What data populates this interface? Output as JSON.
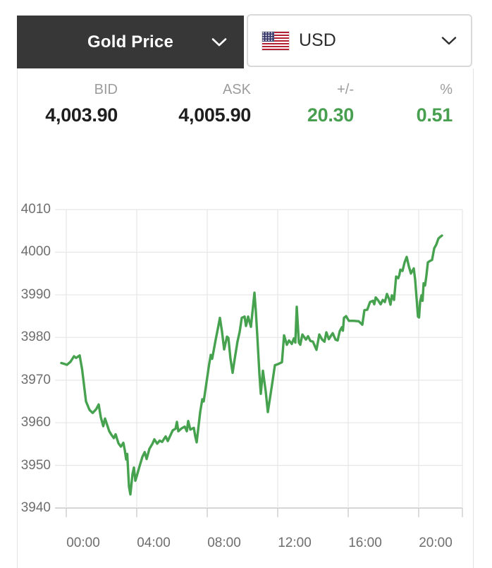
{
  "selector": {
    "label": "Gold Price",
    "chevron_icon": "chevron-down"
  },
  "currency": {
    "label": "USD",
    "flag_icon": "us-flag",
    "chevron_icon": "chevron-down"
  },
  "quote": {
    "headers": [
      "BID",
      "ASK",
      "+/-",
      "%"
    ],
    "bid": "4,003.90",
    "ask": "4,005.90",
    "change": "20.30",
    "change_pct": "0.51"
  },
  "colors": {
    "accent_green": "#479f4f",
    "line_green": "#46a24f",
    "button_dark": "#373737",
    "grid": "#e8e8e8",
    "axis": "#c9c9c9",
    "label_gray": "#6e6e6e",
    "header_gray": "#9c9c9c"
  },
  "chart_data": {
    "type": "line",
    "title": "",
    "xlabel": "",
    "ylabel": "",
    "grid": true,
    "legend": "none",
    "x_unit": "hours (24h clock)",
    "xlim": [
      -0.6,
      22.48
    ],
    "ylim": [
      3940,
      4010
    ],
    "y_ticks": [
      4010,
      4000,
      3990,
      3980,
      3970,
      3960,
      3950,
      3940
    ],
    "x_ticks": [
      {
        "t": 0,
        "label": "00:00"
      },
      {
        "t": 4,
        "label": "04:00"
      },
      {
        "t": 8,
        "label": "08:00"
      },
      {
        "t": 12,
        "label": "12:00"
      },
      {
        "t": 16,
        "label": "16:00"
      },
      {
        "t": 20,
        "label": "20:00"
      }
    ],
    "points": [
      [
        -0.28,
        3974.0
      ],
      [
        -0.1,
        3973.8
      ],
      [
        0.04,
        3973.6
      ],
      [
        0.24,
        3974.3
      ],
      [
        0.44,
        3975.6
      ],
      [
        0.56,
        3975.2
      ],
      [
        0.76,
        3975.8
      ],
      [
        0.9,
        3972.5
      ],
      [
        1.12,
        3965.0
      ],
      [
        1.32,
        3963.0
      ],
      [
        1.5,
        3962.3
      ],
      [
        1.7,
        3963.2
      ],
      [
        1.84,
        3964.3
      ],
      [
        1.96,
        3961.3
      ],
      [
        2.1,
        3959.2
      ],
      [
        2.2,
        3961.0
      ],
      [
        2.44,
        3958.0
      ],
      [
        2.56,
        3957.2
      ],
      [
        2.7,
        3956.4
      ],
      [
        2.8,
        3957.3
      ],
      [
        2.96,
        3955.2
      ],
      [
        3.1,
        3954.4
      ],
      [
        3.24,
        3955.3
      ],
      [
        3.32,
        3953.6
      ],
      [
        3.4,
        3951.4
      ],
      [
        3.46,
        3952.7
      ],
      [
        3.56,
        3945.0
      ],
      [
        3.64,
        3943.2
      ],
      [
        3.76,
        3948.0
      ],
      [
        3.84,
        3949.5
      ],
      [
        3.92,
        3946.4
      ],
      [
        4.0,
        3947.5
      ],
      [
        4.16,
        3949.8
      ],
      [
        4.32,
        3952.0
      ],
      [
        4.45,
        3953.1
      ],
      [
        4.56,
        3951.5
      ],
      [
        4.72,
        3953.9
      ],
      [
        4.88,
        3955.0
      ],
      [
        5.0,
        3956.1
      ],
      [
        5.16,
        3955.1
      ],
      [
        5.3,
        3955.8
      ],
      [
        5.44,
        3955.5
      ],
      [
        5.64,
        3956.8
      ],
      [
        5.76,
        3955.7
      ],
      [
        6.04,
        3958.2
      ],
      [
        6.2,
        3958.6
      ],
      [
        6.28,
        3960.2
      ],
      [
        6.36,
        3958.0
      ],
      [
        6.52,
        3958.6
      ],
      [
        6.72,
        3959.1
      ],
      [
        6.84,
        3958.0
      ],
      [
        6.92,
        3960.4
      ],
      [
        7.04,
        3958.4
      ],
      [
        7.24,
        3958.8
      ],
      [
        7.32,
        3956.8
      ],
      [
        7.4,
        3955.4
      ],
      [
        7.6,
        3962.5
      ],
      [
        7.72,
        3965.5
      ],
      [
        7.8,
        3965.0
      ],
      [
        7.96,
        3969.5
      ],
      [
        8.1,
        3973.5
      ],
      [
        8.2,
        3975.9
      ],
      [
        8.28,
        3975.0
      ],
      [
        8.48,
        3979.5
      ],
      [
        8.6,
        3982.0
      ],
      [
        8.72,
        3984.6
      ],
      [
        8.84,
        3981.3
      ],
      [
        8.96,
        3977.2
      ],
      [
        9.12,
        3980.2
      ],
      [
        9.2,
        3979.9
      ],
      [
        9.32,
        3975.0
      ],
      [
        9.44,
        3971.7
      ],
      [
        9.56,
        3975.0
      ],
      [
        9.72,
        3979.1
      ],
      [
        9.84,
        3981.3
      ],
      [
        9.96,
        3984.6
      ],
      [
        10.12,
        3984.9
      ],
      [
        10.2,
        3982.7
      ],
      [
        10.32,
        3984.9
      ],
      [
        10.48,
        3982.5
      ],
      [
        10.68,
        3990.5
      ],
      [
        10.76,
        3986.0
      ],
      [
        10.84,
        3980.5
      ],
      [
        10.96,
        3971.5
      ],
      [
        11.04,
        3966.8
      ],
      [
        11.16,
        3972.2
      ],
      [
        11.32,
        3967.3
      ],
      [
        11.44,
        3962.5
      ],
      [
        11.68,
        3969.0
      ],
      [
        11.84,
        3973.5
      ],
      [
        12.04,
        3973.8
      ],
      [
        12.24,
        3974.2
      ],
      [
        12.36,
        3980.5
      ],
      [
        12.52,
        3978.3
      ],
      [
        12.64,
        3979.3
      ],
      [
        12.8,
        3978.5
      ],
      [
        12.92,
        3979.8
      ],
      [
        13.0,
        3978.8
      ],
      [
        13.08,
        3987.2
      ],
      [
        13.2,
        3978.8
      ],
      [
        13.28,
        3978.3
      ],
      [
        13.4,
        3980.7
      ],
      [
        13.6,
        3979.5
      ],
      [
        13.72,
        3980.3
      ],
      [
        13.85,
        3979.2
      ],
      [
        14.0,
        3979.0
      ],
      [
        14.2,
        3977.1
      ],
      [
        14.36,
        3980.7
      ],
      [
        14.52,
        3979.5
      ],
      [
        14.65,
        3979.0
      ],
      [
        14.76,
        3981.2
      ],
      [
        14.9,
        3979.6
      ],
      [
        15.05,
        3980.6
      ],
      [
        15.12,
        3981.0
      ],
      [
        15.28,
        3979.5
      ],
      [
        15.4,
        3979.3
      ],
      [
        15.52,
        3981.5
      ],
      [
        15.64,
        3982.4
      ],
      [
        15.7,
        3981.6
      ],
      [
        15.76,
        3984.6
      ],
      [
        15.88,
        3985.0
      ],
      [
        16.04,
        3983.9
      ],
      [
        16.3,
        3983.9
      ],
      [
        16.6,
        3983.8
      ],
      [
        16.8,
        3983.0
      ],
      [
        16.92,
        3986.4
      ],
      [
        17.08,
        3986.5
      ],
      [
        17.24,
        3988.3
      ],
      [
        17.4,
        3988.6
      ],
      [
        17.48,
        3987.8
      ],
      [
        17.56,
        3989.4
      ],
      [
        17.68,
        3988.8
      ],
      [
        17.84,
        3987.8
      ],
      [
        17.96,
        3988.8
      ],
      [
        18.08,
        3988.3
      ],
      [
        18.2,
        3990.2
      ],
      [
        18.32,
        3989.0
      ],
      [
        18.4,
        3987.7
      ],
      [
        18.48,
        3989.9
      ],
      [
        18.6,
        3988.8
      ],
      [
        18.72,
        3994.3
      ],
      [
        18.84,
        3993.9
      ],
      [
        18.9,
        3994.6
      ],
      [
        18.96,
        3995.9
      ],
      [
        19.08,
        3995.6
      ],
      [
        19.2,
        3997.6
      ],
      [
        19.32,
        3998.9
      ],
      [
        19.44,
        3996.7
      ],
      [
        19.56,
        3995.0
      ],
      [
        19.72,
        3996.2
      ],
      [
        19.8,
        3993.5
      ],
      [
        19.96,
        3984.9
      ],
      [
        20.02,
        3984.7
      ],
      [
        20.08,
        3988.3
      ],
      [
        20.16,
        3989.9
      ],
      [
        20.22,
        3988.6
      ],
      [
        20.28,
        3992.7
      ],
      [
        20.36,
        3992.2
      ],
      [
        20.44,
        3994.6
      ],
      [
        20.52,
        3997.6
      ],
      [
        20.62,
        3997.9
      ],
      [
        20.76,
        3998.2
      ],
      [
        20.88,
        4000.9
      ],
      [
        21.0,
        4001.8
      ],
      [
        21.12,
        4003.2
      ],
      [
        21.22,
        4003.6
      ],
      [
        21.32,
        4003.9
      ]
    ]
  }
}
